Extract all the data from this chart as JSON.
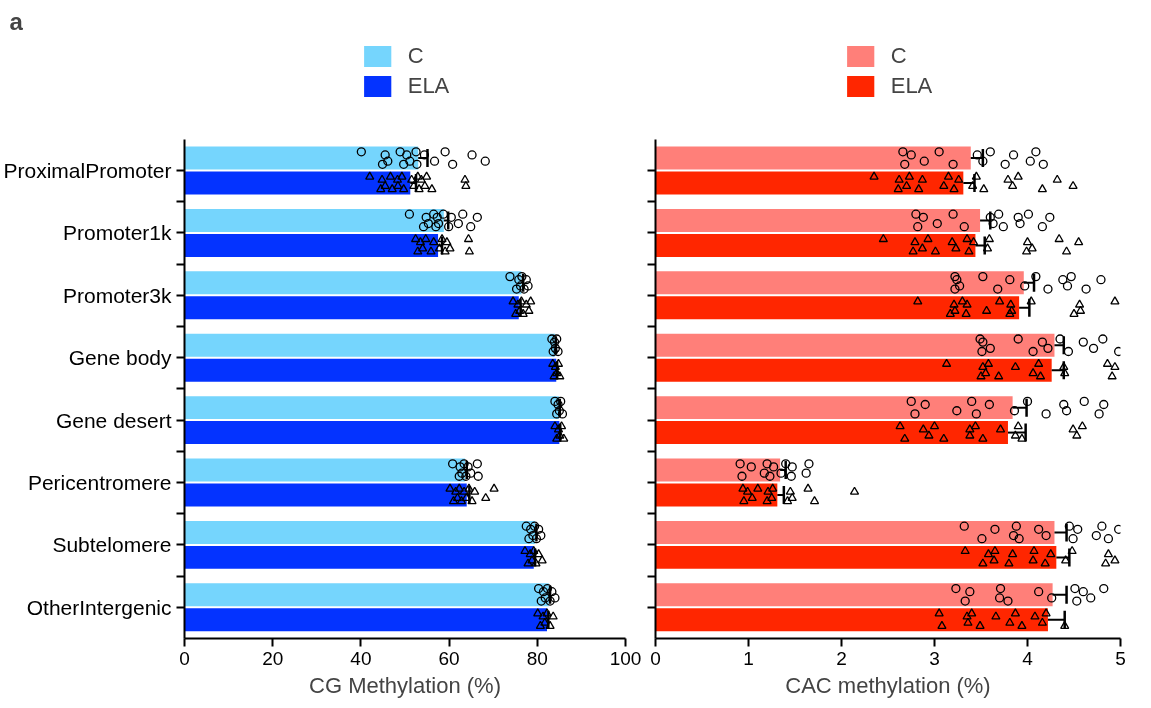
{
  "chart_data": [
    {
      "type": "bar",
      "orientation": "horizontal",
      "annotations": [
        "a"
      ],
      "xlabel": "CG Methylation (%)",
      "legend": "top",
      "grid": false,
      "xlim": [
        0,
        100
      ],
      "xticks": [
        0,
        20,
        40,
        60,
        80,
        100
      ],
      "categories": [
        "ProximalPromoter",
        "Promoter1k",
        "Promoter3k",
        "Gene body",
        "Gene desert",
        "Pericentromere",
        "Subtelomere",
        "OtherIntergenic"
      ],
      "series": [
        {
          "name": "C",
          "color": "#75d5fd",
          "values": [
            53.0,
            58.8,
            76.4,
            84.0,
            84.9,
            63.6,
            79.5,
            82.6
          ],
          "errors": [
            [
              53.0,
              55.1
            ],
            [
              58.8,
              59.8
            ],
            [
              76.4,
              76.8
            ],
            [
              84.0,
              84.2
            ],
            [
              84.9,
              85.1
            ],
            [
              63.6,
              64.0
            ],
            [
              79.5,
              79.8
            ],
            [
              82.6,
              82.9
            ]
          ]
        },
        {
          "name": "ELA",
          "color": "#0433ff",
          "values": [
            51.2,
            57.5,
            75.8,
            84.3,
            85.0,
            64.0,
            79.2,
            82.2
          ],
          "errors": [
            [
              51.2,
              52.5
            ],
            [
              57.5,
              58.4
            ],
            [
              75.8,
              76.2
            ],
            [
              84.3,
              84.5
            ],
            [
              85.0,
              85.2
            ],
            [
              64.0,
              64.6
            ],
            [
              79.2,
              79.5
            ],
            [
              82.2,
              82.5
            ]
          ]
        },
        {
          "type": "scatter",
          "marker": "circle",
          "color": "#000000",
          "x": [
            "ProximalPromoter",
            "ProximalPromoter",
            "ProximalPromoter",
            "ProximalPromoter",
            "ProximalPromoter",
            "ProximalPromoter",
            "ProximalPromoter",
            "ProximalPromoter",
            "ProximalPromoter",
            "ProximalPromoter",
            "ProximalPromoter",
            "ProximalPromoter",
            "ProximalPromoter",
            "ProximalPromoter",
            "ProximalPromoter",
            "ProximalPromoter",
            "Promoter1k",
            "Promoter1k",
            "Promoter1k",
            "Promoter1k",
            "Promoter1k",
            "Promoter1k",
            "Promoter1k",
            "Promoter1k",
            "Promoter1k",
            "Promoter1k",
            "Promoter1k",
            "Promoter1k",
            "Promoter1k",
            "Promoter1k",
            "Promoter1k",
            "Promoter3k",
            "Promoter3k",
            "Promoter3k",
            "Promoter3k",
            "Promoter3k",
            "Promoter3k",
            "Promoter3k",
            "Promoter3k",
            "Gene body",
            "Gene body",
            "Gene body",
            "Gene body",
            "Gene body",
            "Gene body",
            "Gene desert",
            "Gene desert",
            "Gene desert",
            "Gene desert",
            "Gene desert",
            "Gene desert",
            "Pericentromere",
            "Pericentromere",
            "Pericentromere",
            "Pericentromere",
            "Pericentromere",
            "Pericentromere",
            "Pericentromere",
            "Pericentromere",
            "Pericentromere",
            "Pericentromere",
            "Subtelomere",
            "Subtelomere",
            "Subtelomere",
            "Subtelomere",
            "Subtelomere",
            "Subtelomere",
            "Subtelomere",
            "Subtelomere",
            "OtherIntergenic",
            "OtherIntergenic",
            "OtherIntergenic",
            "OtherIntergenic",
            "OtherIntergenic",
            "OtherIntergenic",
            "OtherIntergenic",
            "OtherIntergenic"
          ],
          "values": [
            40.1,
            44.9,
            45.5,
            46.1,
            48.9,
            49.7,
            50.4,
            51.1,
            52.5,
            52.7,
            54.4,
            56.7,
            59.1,
            60.8,
            65.2,
            68.2,
            51.0,
            54.2,
            54.8,
            55.3,
            56.5,
            57.0,
            57.3,
            57.6,
            58.7,
            59.9,
            60.5,
            62.1,
            63.1,
            64.9,
            66.4,
            73.8,
            75.3,
            75.8,
            76.2,
            76.5,
            77.0,
            77.5,
            77.9,
            83.3,
            83.6,
            83.9,
            84.1,
            84.4,
            84.7,
            84.0,
            84.4,
            84.7,
            85.0,
            85.3,
            85.7,
            60.8,
            62.3,
            62.5,
            62.9,
            63.4,
            63.8,
            64.3,
            64.9,
            66.4,
            66.6,
            77.5,
            78.1,
            78.5,
            79.0,
            79.4,
            79.8,
            80.3,
            80.8,
            80.3,
            80.9,
            81.4,
            81.8,
            82.3,
            82.9,
            83.3,
            84.0
          ]
        },
        {
          "type": "scatter",
          "marker": "triangle",
          "color": "#000000",
          "x": [
            "ProximalPromoter",
            "ProximalPromoter",
            "ProximalPromoter",
            "ProximalPromoter",
            "ProximalPromoter",
            "ProximalPromoter",
            "ProximalPromoter",
            "ProximalPromoter",
            "ProximalPromoter",
            "ProximalPromoter",
            "ProximalPromoter",
            "ProximalPromoter",
            "ProximalPromoter",
            "ProximalPromoter",
            "ProximalPromoter",
            "ProximalPromoter",
            "ProximalPromoter",
            "ProximalPromoter",
            "ProximalPromoter",
            "ProximalPromoter",
            "Promoter1k",
            "Promoter1k",
            "Promoter1k",
            "Promoter1k",
            "Promoter1k",
            "Promoter1k",
            "Promoter1k",
            "Promoter1k",
            "Promoter1k",
            "Promoter1k",
            "Promoter1k",
            "Promoter1k",
            "Promoter1k",
            "Promoter1k",
            "Promoter3k",
            "Promoter3k",
            "Promoter3k",
            "Promoter3k",
            "Promoter3k",
            "Promoter3k",
            "Promoter3k",
            "Promoter3k",
            "Promoter3k",
            "Gene body",
            "Gene body",
            "Gene body",
            "Gene body",
            "Gene body",
            "Gene body",
            "Gene desert",
            "Gene desert",
            "Gene desert",
            "Gene desert",
            "Gene desert",
            "Gene desert",
            "Pericentromere",
            "Pericentromere",
            "Pericentromere",
            "Pericentromere",
            "Pericentromere",
            "Pericentromere",
            "Pericentromere",
            "Pericentromere",
            "Pericentromere",
            "Pericentromere",
            "Pericentromere",
            "Pericentromere",
            "Pericentromere",
            "Subtelomere",
            "Subtelomere",
            "Subtelomere",
            "Subtelomere",
            "Subtelomere",
            "Subtelomere",
            "Subtelomere",
            "Subtelomere",
            "OtherIntergenic",
            "OtherIntergenic",
            "OtherIntergenic",
            "OtherIntergenic",
            "OtherIntergenic",
            "OtherIntergenic",
            "OtherIntergenic"
          ],
          "values": [
            42.0,
            44.5,
            44.8,
            45.5,
            46.7,
            47.1,
            48.3,
            48.4,
            49.3,
            49.7,
            51.5,
            52.0,
            52.9,
            53.2,
            53.7,
            54.5,
            54.9,
            56.1,
            63.6,
            63.8,
            52.4,
            52.9,
            53.5,
            54.0,
            54.7,
            55.9,
            56.5,
            57.8,
            58.4,
            59.1,
            59.5,
            60.2,
            64.4,
            64.6,
            74.5,
            75.1,
            75.6,
            76.0,
            76.4,
            76.8,
            77.5,
            78.1,
            78.5,
            83.5,
            83.8,
            84.1,
            84.4,
            84.8,
            85.1,
            84.0,
            84.4,
            84.8,
            85.1,
            85.5,
            86.0,
            60.2,
            61.0,
            61.5,
            61.9,
            62.3,
            62.8,
            63.4,
            63.9,
            64.5,
            65.2,
            65.8,
            68.3,
            70.2,
            77.2,
            77.9,
            78.4,
            78.8,
            79.2,
            79.7,
            80.3,
            81.1,
            80.1,
            80.7,
            81.3,
            81.7,
            82.2,
            82.9,
            83.6
          ]
        }
      ]
    },
    {
      "type": "bar",
      "orientation": "horizontal",
      "xlabel": "CAC methylation (%)",
      "legend": "top",
      "grid": false,
      "tick_labels": "x",
      "xlim": [
        0,
        5
      ],
      "xticks": [
        0,
        1,
        2,
        3,
        4,
        5
      ],
      "categories": [
        "ProximalPromoter",
        "Promoter1k",
        "Promoter3k",
        "Gene body",
        "Gene desert",
        "Pericentromere",
        "Subtelomere",
        "OtherIntergenic"
      ],
      "series": [
        {
          "name": "C",
          "color": "#ff7f79",
          "values": [
            3.39,
            3.49,
            3.96,
            4.29,
            3.84,
            1.34,
            4.29,
            4.27
          ],
          "errors": [
            [
              3.39,
              3.52
            ],
            [
              3.49,
              3.6
            ],
            [
              3.96,
              4.07
            ],
            [
              4.29,
              4.39
            ],
            [
              3.84,
              3.99
            ],
            [
              1.34,
              1.4
            ],
            [
              4.29,
              4.42
            ],
            [
              4.27,
              4.42
            ]
          ]
        },
        {
          "name": "ELA",
          "color": "#ff2600",
          "values": [
            3.31,
            3.44,
            3.91,
            4.26,
            3.79,
            1.31,
            4.31,
            4.22
          ],
          "errors": [
            [
              3.31,
              3.43
            ],
            [
              3.44,
              3.54
            ],
            [
              3.91,
              4.02
            ],
            [
              4.26,
              4.39
            ],
            [
              3.79,
              3.98
            ],
            [
              1.31,
              1.38
            ],
            [
              4.31,
              4.45
            ],
            [
              4.22,
              4.4
            ]
          ]
        },
        {
          "type": "scatter",
          "marker": "circle",
          "color": "#000000",
          "x": [
            "ProximalPromoter",
            "ProximalPromoter",
            "ProximalPromoter",
            "ProximalPromoter",
            "ProximalPromoter",
            "ProximalPromoter",
            "ProximalPromoter",
            "ProximalPromoter",
            "ProximalPromoter",
            "ProximalPromoter",
            "ProximalPromoter",
            "ProximalPromoter",
            "ProximalPromoter",
            "ProximalPromoter",
            "Promoter1k",
            "Promoter1k",
            "Promoter1k",
            "Promoter1k",
            "Promoter1k",
            "Promoter1k",
            "Promoter1k",
            "Promoter1k",
            "Promoter1k",
            "Promoter1k",
            "Promoter1k",
            "Promoter1k",
            "Promoter1k",
            "Promoter1k",
            "Promoter1k",
            "Promoter3k",
            "Promoter3k",
            "Promoter3k",
            "Promoter3k",
            "Promoter3k",
            "Promoter3k",
            "Promoter3k",
            "Promoter3k",
            "Promoter3k",
            "Promoter3k",
            "Promoter3k",
            "Promoter3k",
            "Promoter3k",
            "Promoter3k",
            "Promoter3k",
            "Gene body",
            "Gene body",
            "Gene body",
            "Gene body",
            "Gene body",
            "Gene body",
            "Gene body",
            "Gene body",
            "Gene body",
            "Gene body",
            "Gene body",
            "Gene body",
            "Gene body",
            "Gene body",
            "Gene desert",
            "Gene desert",
            "Gene desert",
            "Gene desert",
            "Gene desert",
            "Gene desert",
            "Gene desert",
            "Gene desert",
            "Gene desert",
            "Gene desert",
            "Gene desert",
            "Gene desert",
            "Gene desert",
            "Gene desert",
            "Gene desert",
            "Pericentromere",
            "Pericentromere",
            "Pericentromere",
            "Pericentromere",
            "Pericentromere",
            "Pericentromere",
            "Pericentromere",
            "Pericentromere",
            "Pericentromere",
            "Pericentromere",
            "Pericentromere",
            "Pericentromere",
            "Pericentromere",
            "Subtelomere",
            "Subtelomere",
            "Subtelomere",
            "Subtelomere",
            "Subtelomere",
            "Subtelomere",
            "Subtelomere",
            "Subtelomere",
            "Subtelomere",
            "Subtelomere",
            "Subtelomere",
            "Subtelomere",
            "Subtelomere",
            "Subtelomere",
            "Subtelomere",
            "OtherIntergenic",
            "OtherIntergenic",
            "OtherIntergenic",
            "OtherIntergenic",
            "OtherIntergenic",
            "OtherIntergenic",
            "OtherIntergenic",
            "OtherIntergenic",
            "OtherIntergenic",
            "OtherIntergenic",
            "OtherIntergenic",
            "OtherIntergenic",
            "OtherIntergenic"
          ],
          "values": [
            2.66,
            2.68,
            2.75,
            2.89,
            3.05,
            3.2,
            3.46,
            3.52,
            3.6,
            3.76,
            3.85,
            4.03,
            4.09,
            4.17,
            2.8,
            2.82,
            2.88,
            3.03,
            3.2,
            3.32,
            3.6,
            3.63,
            3.69,
            3.74,
            3.9,
            3.92,
            4.01,
            4.16,
            4.24,
            3.22,
            3.22,
            3.24,
            3.27,
            3.52,
            3.68,
            3.81,
            3.97,
            4.09,
            4.22,
            4.38,
            4.43,
            4.47,
            4.63,
            4.79,
            3.49,
            3.51,
            3.52,
            3.6,
            3.9,
            4.06,
            4.16,
            4.22,
            4.35,
            4.44,
            4.6,
            4.71,
            4.81,
            4.98,
            2.75,
            2.79,
            2.9,
            3.24,
            3.4,
            3.45,
            3.59,
            3.86,
            4.0,
            4.2,
            4.39,
            4.42,
            4.61,
            4.77,
            4.82,
            0.91,
            0.93,
            1.03,
            1.17,
            1.2,
            1.23,
            1.27,
            1.35,
            1.4,
            1.46,
            1.47,
            1.62,
            1.65,
            3.32,
            3.51,
            3.65,
            3.85,
            3.88,
            3.91,
            4.12,
            4.2,
            4.45,
            4.49,
            4.54,
            4.74,
            4.8,
            4.87,
            4.98,
            3.23,
            3.33,
            3.38,
            3.7,
            3.71,
            3.79,
            4.12,
            4.26,
            4.51,
            4.53,
            4.6,
            4.68,
            4.82
          ]
        },
        {
          "type": "scatter",
          "marker": "triangle",
          "color": "#000000",
          "x": [
            "ProximalPromoter",
            "ProximalPromoter",
            "ProximalPromoter",
            "ProximalPromoter",
            "ProximalPromoter",
            "ProximalPromoter",
            "ProximalPromoter",
            "ProximalPromoter",
            "ProximalPromoter",
            "ProximalPromoter",
            "ProximalPromoter",
            "ProximalPromoter",
            "ProximalPromoter",
            "ProximalPromoter",
            "ProximalPromoter",
            "ProximalPromoter",
            "ProximalPromoter",
            "ProximalPromoter",
            "ProximalPromoter",
            "ProximalPromoter",
            "Promoter1k",
            "Promoter1k",
            "Promoter1k",
            "Promoter1k",
            "Promoter1k",
            "Promoter1k",
            "Promoter1k",
            "Promoter1k",
            "Promoter1k",
            "Promoter1k",
            "Promoter1k",
            "Promoter1k",
            "Promoter1k",
            "Promoter1k",
            "Promoter1k",
            "Promoter1k",
            "Promoter1k",
            "Promoter1k",
            "Promoter1k",
            "Promoter3k",
            "Promoter3k",
            "Promoter3k",
            "Promoter3k",
            "Promoter3k",
            "Promoter3k",
            "Promoter3k",
            "Promoter3k",
            "Promoter3k",
            "Promoter3k",
            "Promoter3k",
            "Promoter3k",
            "Promoter3k",
            "Promoter3k",
            "Promoter3k",
            "Promoter3k",
            "Promoter3k",
            "Gene body",
            "Gene body",
            "Gene body",
            "Gene body",
            "Gene body",
            "Gene body",
            "Gene body",
            "Gene body",
            "Gene body",
            "Gene body",
            "Gene body",
            "Gene body",
            "Gene body",
            "Gene body",
            "Gene body",
            "Gene desert",
            "Gene desert",
            "Gene desert",
            "Gene desert",
            "Gene desert",
            "Gene desert",
            "Gene desert",
            "Gene desert",
            "Gene desert",
            "Gene desert",
            "Gene desert",
            "Gene desert",
            "Gene desert",
            "Gene desert",
            "Gene desert",
            "Gene desert",
            "Gene desert",
            "Pericentromere",
            "Pericentromere",
            "Pericentromere",
            "Pericentromere",
            "Pericentromere",
            "Pericentromere",
            "Pericentromere",
            "Pericentromere",
            "Pericentromere",
            "Pericentromere",
            "Pericentromere",
            "Pericentromere",
            "Pericentromere",
            "Pericentromere",
            "Pericentromere",
            "Subtelomere",
            "Subtelomere",
            "Subtelomere",
            "Subtelomere",
            "Subtelomere",
            "Subtelomere",
            "Subtelomere",
            "Subtelomere",
            "Subtelomere",
            "Subtelomere",
            "Subtelomere",
            "Subtelomere",
            "Subtelomere",
            "Subtelomere",
            "Subtelomere",
            "Subtelomere",
            "OtherIntergenic",
            "OtherIntergenic",
            "OtherIntergenic",
            "OtherIntergenic",
            "OtherIntergenic",
            "OtherIntergenic",
            "OtherIntergenic",
            "OtherIntergenic",
            "OtherIntergenic",
            "OtherIntergenic",
            "OtherIntergenic",
            "OtherIntergenic",
            "OtherIntergenic",
            "OtherIntergenic"
          ],
          "values": [
            2.35,
            2.61,
            2.62,
            2.7,
            2.73,
            2.83,
            2.87,
            3.1,
            3.15,
            3.21,
            3.26,
            3.41,
            3.45,
            3.53,
            3.79,
            3.84,
            3.9,
            4.16,
            4.32,
            4.49,
            2.45,
            2.77,
            2.79,
            2.87,
            2.93,
            3.01,
            3.19,
            3.23,
            3.35,
            3.37,
            3.42,
            3.57,
            3.59,
            3.99,
            4.0,
            4.05,
            4.34,
            4.42,
            4.55,
            2.82,
            3.17,
            3.21,
            3.22,
            3.3,
            3.34,
            3.35,
            3.56,
            3.7,
            3.81,
            3.82,
            3.83,
            4.04,
            4.5,
            4.56,
            4.57,
            4.94,
            3.13,
            3.5,
            3.52,
            3.55,
            3.58,
            3.69,
            3.87,
            4.06,
            4.12,
            4.14,
            4.39,
            4.4,
            4.86,
            4.91,
            4.94,
            2.63,
            2.68,
            2.88,
            2.94,
            3.0,
            3.1,
            3.38,
            3.38,
            3.44,
            3.52,
            3.71,
            3.87,
            3.9,
            3.94,
            4.49,
            4.53,
            4.59,
            0.94,
            0.95,
            0.99,
            1.04,
            1.1,
            1.2,
            1.21,
            1.25,
            1.26,
            1.42,
            1.45,
            1.47,
            1.64,
            1.71,
            2.14,
            3.33,
            3.52,
            3.58,
            3.64,
            3.65,
            3.8,
            3.84,
            4.06,
            4.07,
            4.19,
            4.25,
            4.41,
            4.48,
            4.84,
            4.87,
            4.94,
            3.05,
            3.08,
            3.35,
            3.36,
            3.4,
            3.49,
            3.66,
            3.81,
            3.87,
            3.94,
            4.08,
            4.16,
            4.2,
            4.4
          ]
        }
      ]
    }
  ]
}
